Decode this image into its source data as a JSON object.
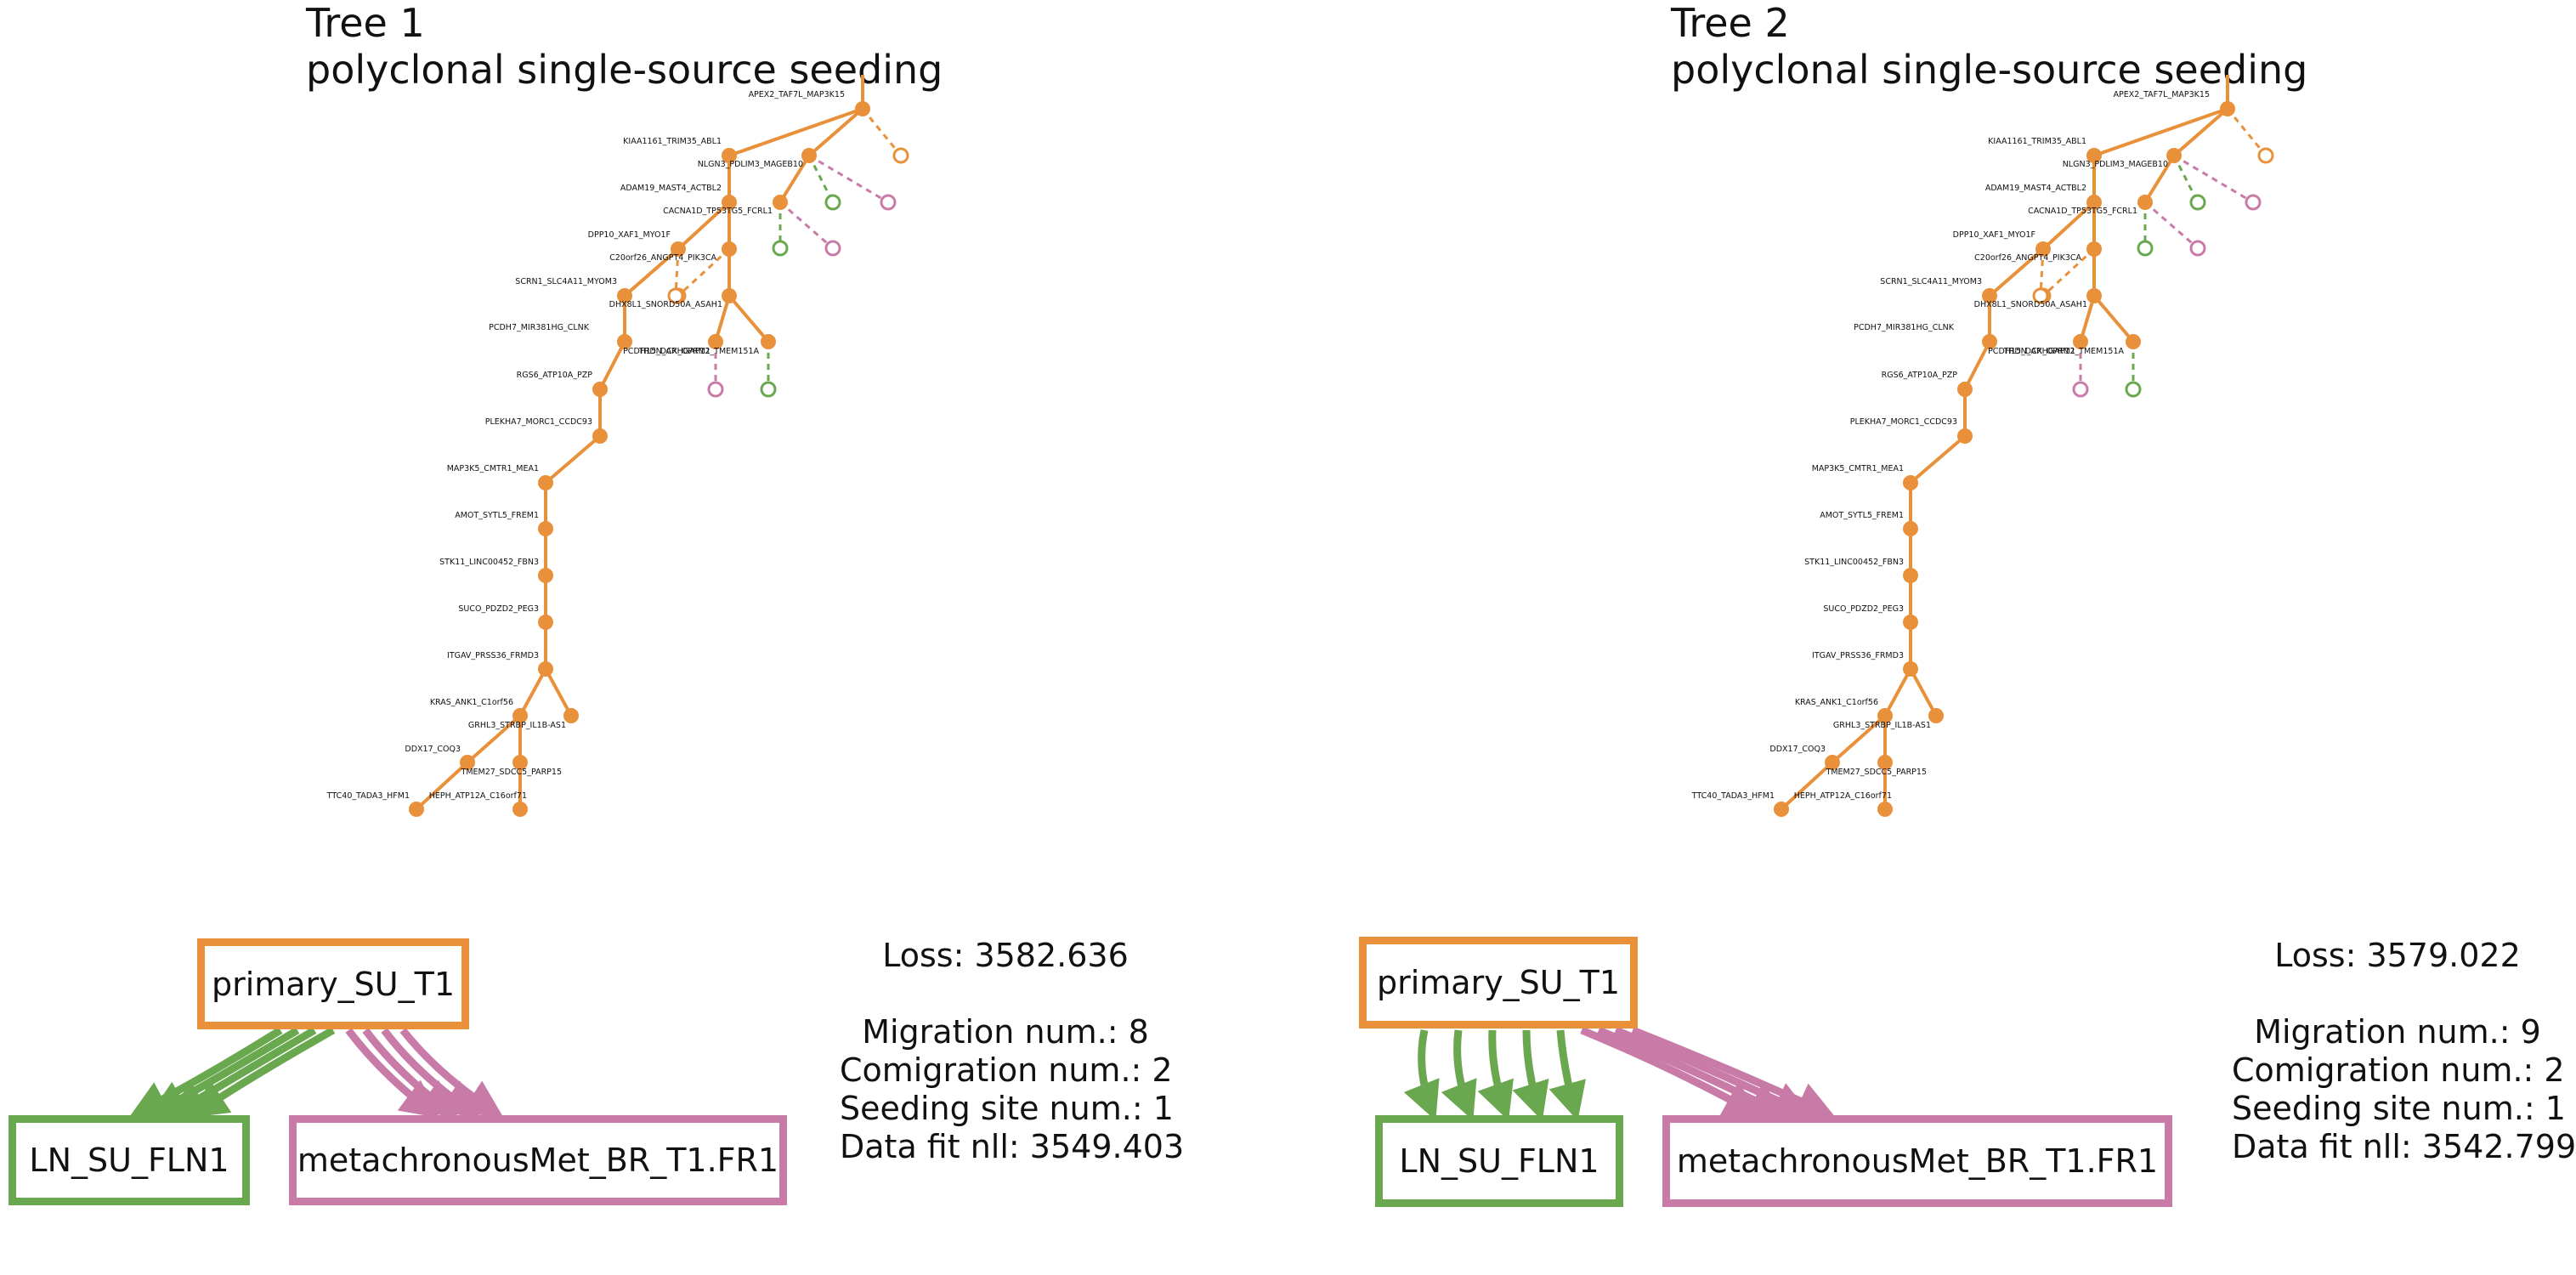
{
  "colors": {
    "primary": "#e8913a",
    "ln": "#6aa84f",
    "met": "#c97ba8"
  },
  "panels": [
    {
      "title": "Tree 1",
      "subtitle": "polyclonal single-source seeding",
      "sites": {
        "primary": "primary_SU_T1",
        "ln": "LN_SU_FLN1",
        "met": "metachronousMet_BR_T1.FR1"
      },
      "stats": {
        "loss": "Loss: 3582.636",
        "migration": "Migration num.: 8",
        "comigration": "Comigration num.: 2",
        "seeding": "Seeding site num.: 1",
        "datafit": "Data fit nll: 3549.403"
      }
    },
    {
      "title": "Tree 2",
      "subtitle": "polyclonal single-source seeding",
      "sites": {
        "primary": "primary_SU_T1",
        "ln": "LN_SU_FLN1",
        "met": "metachronousMet_BR_T1.FR1"
      },
      "stats": {
        "loss": "Loss: 3579.022",
        "migration": "Migration num.: 9",
        "comigration": "Comigration num.: 2",
        "seeding": "Seeding site num.: 1",
        "datafit": "Data fit nll: 3542.799"
      }
    }
  ],
  "node_labels": [
    "APEX2_TAF7L_MAP3K15",
    "KIAA1161_TRIM35_ABL1",
    "NLGN3_PDLIM3_MAGEB10",
    "ADAM19_MAST4_ACTBL2",
    "CACNA1D_TP53TG5_FCRL1",
    "DPP10_XAF1_MYO1F",
    "C20orf26_ANGPT4_PIK3CA",
    "SCRN1_SLC4A11_MYOM3",
    "DHX8L1_SNORD50A_ASAH1",
    "PCDH7_MIR381HG_CLNK",
    "PCDH15_DCX_OPRM1",
    "TRDN_ARHGAP12_TMEM151A",
    "RGS6_ATP10A_PZP",
    "PLEKHA7_MORC1_CCDC93",
    "MAP3K5_CMTR1_MEA1",
    "AMOT_SYTL5_FREM1",
    "STK11_LINC00452_FBN3",
    "SUCO_PDZD2_PEG3",
    "ITGAV_PRSS36_FRMD3",
    "KRAS_ANK1_C1orf56",
    "GRHL3_STRBP_IL1B-AS1",
    "DDX17_COQ3",
    "TMEM27_SDCC5_PARP15",
    "TTC40_TADA3_HFM1",
    "HEPH_ATP12A_C16orf71"
  ]
}
